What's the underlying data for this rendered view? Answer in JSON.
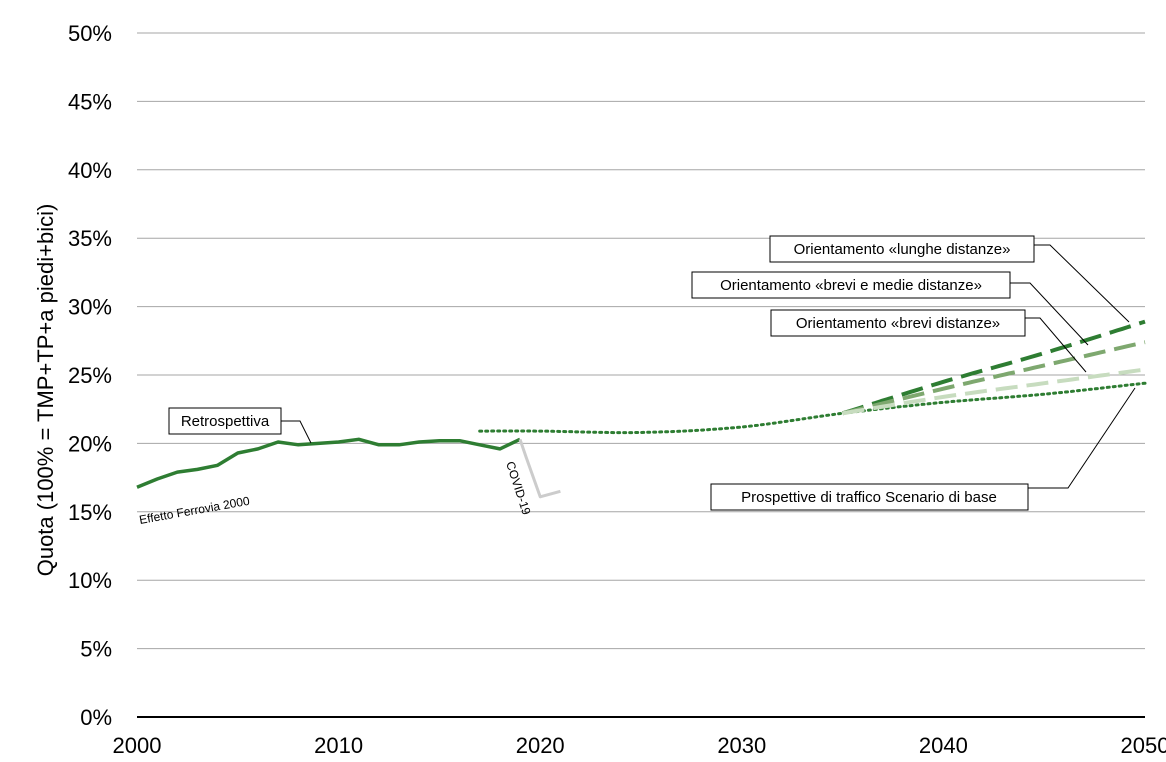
{
  "chart_data": {
    "type": "line",
    "title": "",
    "xlabel": "",
    "ylabel": "Quota (100% = TMP+TP+a piedi+bici)",
    "xlim": [
      2000,
      2050
    ],
    "ylim": [
      0,
      50
    ],
    "x_ticks": [
      "2000",
      "2010",
      "2020",
      "2030",
      "2040",
      "2050"
    ],
    "y_ticks": [
      "0%",
      "5%",
      "10%",
      "15%",
      "20%",
      "25%",
      "30%",
      "35%",
      "40%",
      "45%",
      "50%"
    ],
    "grid": true,
    "colors": {
      "retro": "#2e7d32",
      "covid": "#cccccc",
      "base": "#2e7d32",
      "lunghe": "#2e7d32",
      "medie": "#7ea86f",
      "brevi": "#c7dcbf"
    },
    "series": [
      {
        "name": "Retrospettiva",
        "style": "solid",
        "points": [
          [
            2000,
            16.8
          ],
          [
            2001,
            17.4
          ],
          [
            2002,
            17.9
          ],
          [
            2003,
            18.1
          ],
          [
            2004,
            18.4
          ],
          [
            2005,
            19.3
          ],
          [
            2006,
            19.6
          ],
          [
            2007,
            20.1
          ],
          [
            2008,
            19.9
          ],
          [
            2009,
            20.0
          ],
          [
            2010,
            20.1
          ],
          [
            2011,
            20.3
          ],
          [
            2012,
            19.9
          ],
          [
            2013,
            19.9
          ],
          [
            2014,
            20.1
          ],
          [
            2015,
            20.2
          ],
          [
            2016,
            20.2
          ],
          [
            2017,
            19.9
          ],
          [
            2018,
            19.6
          ],
          [
            2019,
            20.3
          ]
        ]
      },
      {
        "name": "COVID-19",
        "style": "solid",
        "points": [
          [
            2019,
            20.3
          ],
          [
            2019.3,
            19.0
          ],
          [
            2020,
            16.1
          ],
          [
            2021,
            16.5
          ]
        ]
      },
      {
        "name": "Prospettive di traffico Scenario di base",
        "style": "dotted",
        "points": [
          [
            2017,
            20.9
          ],
          [
            2020,
            20.9
          ],
          [
            2025,
            20.8
          ],
          [
            2030,
            21.2
          ],
          [
            2035,
            22.2
          ],
          [
            2040,
            23.0
          ],
          [
            2045,
            23.6
          ],
          [
            2050,
            24.4
          ]
        ]
      },
      {
        "name": "Orientamento «lunghe distanze»",
        "style": "dashed",
        "points": [
          [
            2035,
            22.2
          ],
          [
            2040,
            24.5
          ],
          [
            2045,
            26.6
          ],
          [
            2050,
            28.9
          ]
        ]
      },
      {
        "name": "Orientamento «brevi e medie distanze»",
        "style": "dashed",
        "points": [
          [
            2035,
            22.2
          ],
          [
            2040,
            24.0
          ],
          [
            2045,
            25.7
          ],
          [
            2050,
            27.4
          ]
        ]
      },
      {
        "name": "Orientamento «brevi distanze»",
        "style": "dashed",
        "points": [
          [
            2035,
            22.2
          ],
          [
            2040,
            23.4
          ],
          [
            2045,
            24.4
          ],
          [
            2050,
            25.4
          ]
        ]
      }
    ],
    "annotations": {
      "retro_label": "Retrospettiva",
      "ferrovia": "Effetto Ferrovia 2000",
      "covid": "COVID-19",
      "base_label": "Prospettive di traffico Scenario di base",
      "lunghe_label": "Orientamento «lunghe distanze»",
      "medie_label": "Orientamento «brevi e medie distanze»",
      "brevi_label": "Orientamento «brevi distanze»"
    }
  }
}
